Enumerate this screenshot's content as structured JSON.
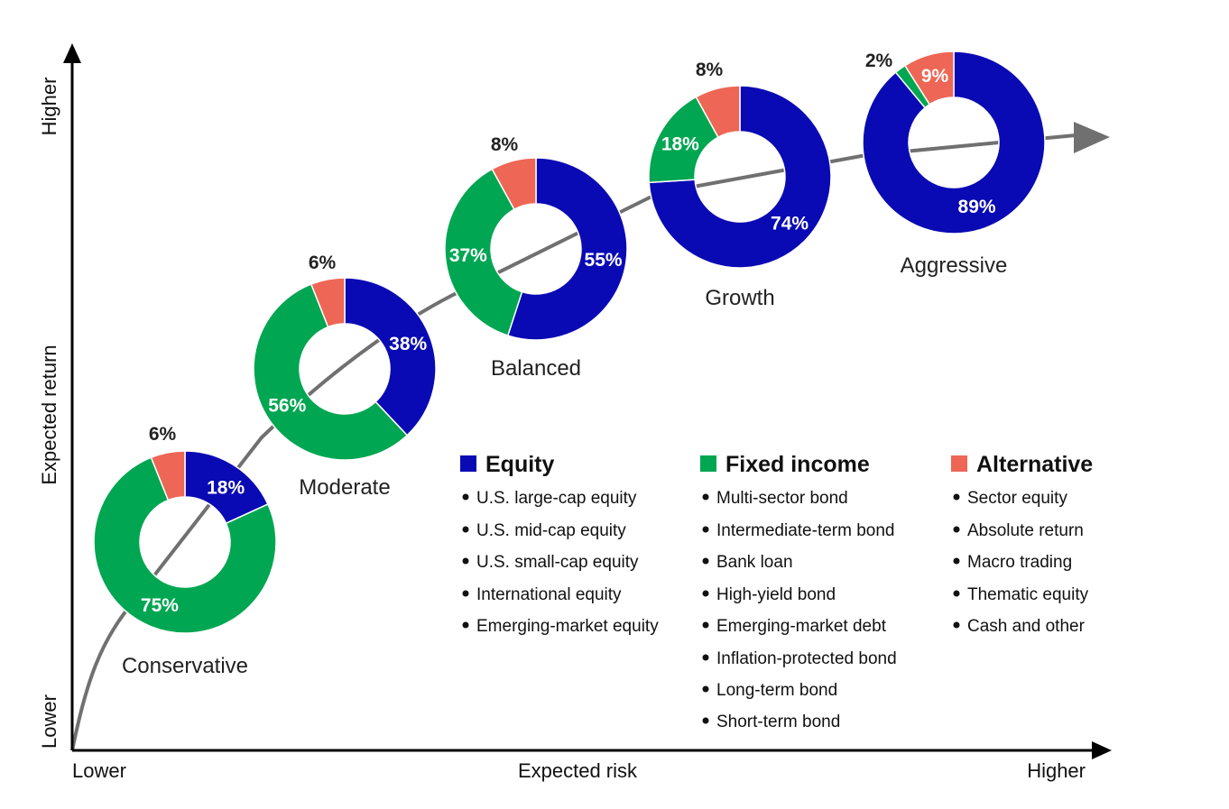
{
  "chart_data": {
    "type": "donut-series",
    "xlabel": "Expected risk",
    "ylabel": "Expected return",
    "x_low_label": "Lower",
    "x_high_label": "Higher",
    "y_low_label": "Lower",
    "y_high_label": "Higher",
    "colors": {
      "equity": "#0a0ab4",
      "fixed_income": "#00a651",
      "alternative": "#ee6655"
    },
    "portfolios": [
      {
        "name": "Conservative",
        "equity": 18,
        "fixed_income": 75,
        "alternative": 6,
        "labels": {
          "equity": "18%",
          "fixed_income": "75%",
          "alternative": "6%"
        }
      },
      {
        "name": "Moderate",
        "equity": 38,
        "fixed_income": 56,
        "alternative": 6,
        "labels": {
          "equity": "38%",
          "fixed_income": "56%",
          "alternative": "6%"
        }
      },
      {
        "name": "Balanced",
        "equity": 55,
        "fixed_income": 37,
        "alternative": 8,
        "labels": {
          "equity": "55%",
          "fixed_income": "37%",
          "alternative": "8%"
        }
      },
      {
        "name": "Growth",
        "equity": 74,
        "fixed_income": 18,
        "alternative": 8,
        "labels": {
          "equity": "74%",
          "fixed_income": "18%",
          "alternative": "8%"
        }
      },
      {
        "name": "Aggressive",
        "equity": 89,
        "fixed_income": 2,
        "alternative": 9,
        "labels": {
          "equity": "89%",
          "fixed_income": "2%",
          "alternative": "9%"
        }
      }
    ],
    "legend": [
      {
        "key": "equity",
        "title": "Equity",
        "items": [
          "U.S. large-cap equity",
          "U.S. mid-cap equity",
          "U.S. small-cap equity",
          "International equity",
          "Emerging-market equity"
        ]
      },
      {
        "key": "fixed_income",
        "title": "Fixed income",
        "items": [
          "Multi-sector bond",
          "Intermediate-term bond",
          "Bank loan",
          "High-yield bond",
          "Emerging-market debt",
          "Inflation-protected bond",
          "Long-term bond",
          "Short-term bond"
        ]
      },
      {
        "key": "alternative",
        "title": "Alternative",
        "items": [
          "Sector equity",
          "Absolute return",
          "Macro trading",
          "Thematic equity",
          "Cash and other"
        ]
      }
    ]
  }
}
